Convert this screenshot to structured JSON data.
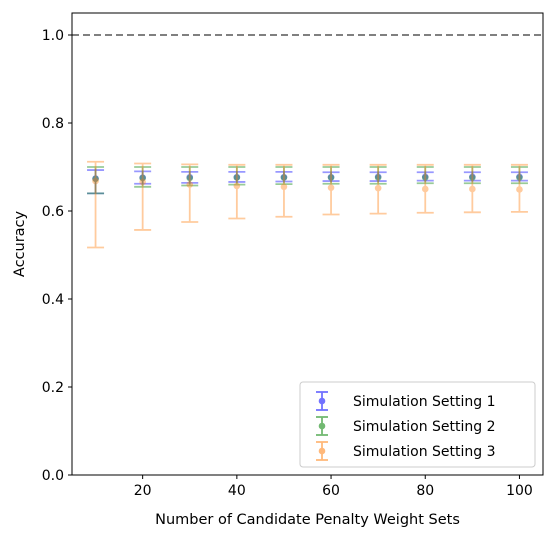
{
  "chart_data": {
    "type": "errorbar",
    "title": "",
    "xlabel": "Number of Candidate Penalty Weight Sets",
    "ylabel": "Accuracy",
    "xlim": [
      5,
      105
    ],
    "ylim": [
      0.0,
      1.05
    ],
    "x_ticks": [
      20,
      40,
      60,
      80,
      100
    ],
    "y_ticks": [
      0.0,
      0.2,
      0.4,
      0.6,
      0.8,
      1.0
    ],
    "x_tick_labels": [
      "20",
      "40",
      "60",
      "80",
      "100"
    ],
    "y_tick_labels": [
      "0.0",
      "0.2",
      "0.4",
      "0.6",
      "0.8",
      "1.0"
    ],
    "grid": false,
    "legend_position": "bottom-right",
    "reference_line": {
      "y": 1.0,
      "style": "dashed",
      "color": "#808080"
    },
    "x": [
      10,
      20,
      30,
      40,
      50,
      60,
      70,
      80,
      90,
      100
    ],
    "series": [
      {
        "name": "Simulation Setting 1",
        "color": "#0000ff",
        "y": [
          0.674,
          0.676,
          0.677,
          0.677,
          0.677,
          0.677,
          0.678,
          0.678,
          0.678,
          0.678
        ],
        "lower": [
          0.64,
          0.662,
          0.664,
          0.666,
          0.667,
          0.668,
          0.668,
          0.669,
          0.669,
          0.669
        ],
        "upper": [
          0.693,
          0.69,
          0.689,
          0.689,
          0.689,
          0.688,
          0.688,
          0.688,
          0.688,
          0.688
        ]
      },
      {
        "name": "Simulation Setting 2",
        "color": "#008000",
        "y": [
          0.673,
          0.675,
          0.675,
          0.676,
          0.676,
          0.676,
          0.676,
          0.676,
          0.676,
          0.676
        ],
        "lower": [
          0.64,
          0.655,
          0.658,
          0.66,
          0.661,
          0.662,
          0.662,
          0.663,
          0.663,
          0.663
        ],
        "upper": [
          0.7,
          0.7,
          0.7,
          0.7,
          0.7,
          0.7,
          0.7,
          0.7,
          0.7,
          0.7
        ]
      },
      {
        "name": "Simulation Setting 3",
        "color": "#ff7f0e",
        "y": [
          0.668,
          0.666,
          0.66,
          0.657,
          0.655,
          0.653,
          0.652,
          0.65,
          0.65,
          0.649
        ],
        "lower": [
          0.517,
          0.557,
          0.575,
          0.583,
          0.587,
          0.592,
          0.594,
          0.596,
          0.597,
          0.598
        ],
        "upper": [
          0.712,
          0.708,
          0.706,
          0.705,
          0.705,
          0.705,
          0.705,
          0.705,
          0.705,
          0.705
        ]
      }
    ]
  }
}
